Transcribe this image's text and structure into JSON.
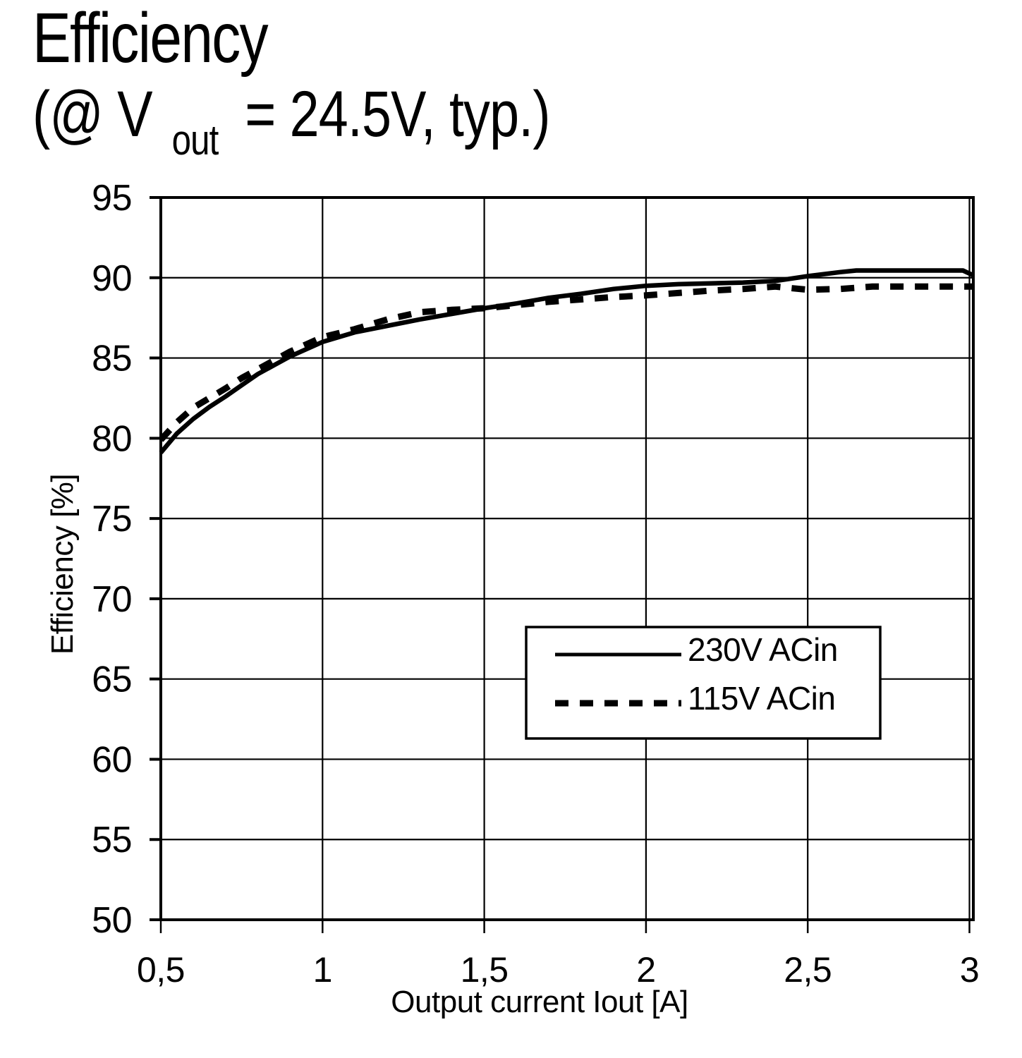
{
  "title": {
    "line1": "Efficiency",
    "line2_pre": "(@ V",
    "line2_sub": "out",
    "line2_post": "= 24.5V, typ.)"
  },
  "colors": {
    "background": "#ffffff",
    "ink": "#000000",
    "grid": "#000000"
  },
  "chart_data": {
    "type": "line",
    "title": "Efficiency (@ Vout = 24.5V, typ.)",
    "xlabel": "Output current Iout [A]",
    "ylabel": "Efficiency [%]",
    "xlim": [
      0.5,
      3.012
    ],
    "ylim": [
      50,
      95
    ],
    "grid": true,
    "legend_position": "inside-lower-right",
    "x_ticks": [
      0.5,
      1,
      1.5,
      2,
      2.5,
      3
    ],
    "x_tick_labels": [
      "0,5",
      "1",
      "1,5",
      "2",
      "2,5",
      "3"
    ],
    "y_ticks": [
      95,
      90,
      85,
      80,
      75,
      70,
      65,
      60,
      55,
      50
    ],
    "y_tick_labels": [
      "95",
      "90",
      "85",
      "80",
      "75",
      "70",
      "65",
      "60",
      "55",
      "50"
    ],
    "series": [
      {
        "name": "230V ACin",
        "style": "solid",
        "points": [
          [
            0.5,
            79.1
          ],
          [
            0.55,
            80.3
          ],
          [
            0.6,
            81.2
          ],
          [
            0.65,
            81.95
          ],
          [
            0.7,
            82.6
          ],
          [
            0.75,
            83.3
          ],
          [
            0.8,
            84.0
          ],
          [
            0.85,
            84.55
          ],
          [
            0.9,
            85.1
          ],
          [
            0.95,
            85.55
          ],
          [
            1.0,
            86.0
          ],
          [
            1.1,
            86.6
          ],
          [
            1.2,
            87.0
          ],
          [
            1.3,
            87.4
          ],
          [
            1.4,
            87.75
          ],
          [
            1.5,
            88.1
          ],
          [
            1.6,
            88.4
          ],
          [
            1.7,
            88.75
          ],
          [
            1.8,
            89.0
          ],
          [
            1.9,
            89.3
          ],
          [
            2.0,
            89.5
          ],
          [
            2.1,
            89.6
          ],
          [
            2.2,
            89.65
          ],
          [
            2.3,
            89.7
          ],
          [
            2.4,
            89.8
          ],
          [
            2.5,
            90.1
          ],
          [
            2.6,
            90.35
          ],
          [
            2.65,
            90.45
          ],
          [
            2.8,
            90.45
          ],
          [
            2.98,
            90.45
          ],
          [
            3.01,
            90.17
          ]
        ]
      },
      {
        "name": "115V ACin",
        "style": "dashed",
        "points": [
          [
            0.5,
            79.9
          ],
          [
            0.55,
            81.0
          ],
          [
            0.6,
            81.9
          ],
          [
            0.65,
            82.5
          ],
          [
            0.7,
            83.1
          ],
          [
            0.75,
            83.75
          ],
          [
            0.8,
            84.3
          ],
          [
            0.85,
            84.85
          ],
          [
            0.9,
            85.4
          ],
          [
            0.95,
            85.85
          ],
          [
            1.0,
            86.3
          ],
          [
            1.1,
            86.8
          ],
          [
            1.2,
            87.4
          ],
          [
            1.3,
            87.85
          ],
          [
            1.4,
            88.0
          ],
          [
            1.5,
            88.1
          ],
          [
            1.6,
            88.3
          ],
          [
            1.7,
            88.5
          ],
          [
            1.8,
            88.65
          ],
          [
            1.9,
            88.8
          ],
          [
            2.0,
            88.9
          ],
          [
            2.1,
            89.05
          ],
          [
            2.2,
            89.2
          ],
          [
            2.3,
            89.3
          ],
          [
            2.4,
            89.45
          ],
          [
            2.5,
            89.25
          ],
          [
            2.6,
            89.3
          ],
          [
            2.7,
            89.45
          ],
          [
            2.9,
            89.45
          ],
          [
            3.01,
            89.45
          ]
        ]
      }
    ]
  }
}
